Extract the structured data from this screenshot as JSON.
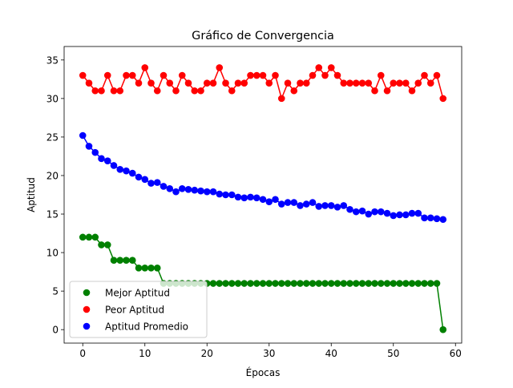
{
  "chart_data": {
    "type": "line",
    "title": "Gráfico de Convergencia",
    "xlabel": "Épocas",
    "ylabel": "Aptitud",
    "xlim": [
      -3,
      61
    ],
    "ylim": [
      -1.75,
      36.75
    ],
    "xticks": [
      "0",
      "10",
      "20",
      "30",
      "40",
      "50",
      "60"
    ],
    "yticks": [
      "0",
      "5",
      "10",
      "15",
      "20",
      "25",
      "30",
      "35"
    ],
    "grid": false,
    "legend_placement": "lower-left",
    "x": [
      0,
      1,
      2,
      3,
      4,
      5,
      6,
      7,
      8,
      9,
      10,
      11,
      12,
      13,
      14,
      15,
      16,
      17,
      18,
      19,
      20,
      21,
      22,
      23,
      24,
      25,
      26,
      27,
      28,
      29,
      30,
      31,
      32,
      33,
      34,
      35,
      36,
      37,
      38,
      39,
      40,
      41,
      42,
      43,
      44,
      45,
      46,
      47,
      48,
      49,
      50,
      51,
      52,
      53,
      54,
      55,
      56,
      57,
      58
    ],
    "series": [
      {
        "name": "Mejor Aptitud",
        "color": "#008000",
        "values": [
          12,
          12,
          12,
          11,
          11,
          9,
          9,
          9,
          9,
          8,
          8,
          8,
          8,
          6,
          6,
          6,
          6,
          6,
          6,
          6,
          6,
          6,
          6,
          6,
          6,
          6,
          6,
          6,
          6,
          6,
          6,
          6,
          6,
          6,
          6,
          6,
          6,
          6,
          6,
          6,
          6,
          6,
          6,
          6,
          6,
          6,
          6,
          6,
          6,
          6,
          6,
          6,
          6,
          6,
          6,
          6,
          6,
          6,
          0
        ]
      },
      {
        "name": "Peor Aptitud",
        "color": "#ff0000",
        "values": [
          33,
          32,
          31,
          31,
          33,
          31,
          31,
          33,
          33,
          32,
          34,
          32,
          31,
          33,
          32,
          31,
          33,
          32,
          31,
          31,
          32,
          32,
          34,
          32,
          31,
          32,
          32,
          33,
          33,
          33,
          32,
          33,
          30,
          32,
          31,
          32,
          32,
          33,
          34,
          33,
          34,
          33,
          32,
          32,
          32,
          32,
          32,
          31,
          33,
          31,
          32,
          32,
          32,
          31,
          32,
          33,
          32,
          33,
          30
        ]
      },
      {
        "name": "Aptitud Promedio",
        "color": "#0000ff",
        "values": [
          25.2,
          23.8,
          23.0,
          22.2,
          21.9,
          21.3,
          20.8,
          20.6,
          20.3,
          19.8,
          19.5,
          19.0,
          19.1,
          18.6,
          18.3,
          17.9,
          18.3,
          18.2,
          18.1,
          18.0,
          17.9,
          17.9,
          17.6,
          17.5,
          17.5,
          17.2,
          17.1,
          17.2,
          17.1,
          16.9,
          16.6,
          16.9,
          16.3,
          16.5,
          16.5,
          16.1,
          16.3,
          16.5,
          16.0,
          16.1,
          16.1,
          15.9,
          16.1,
          15.6,
          15.3,
          15.4,
          15.0,
          15.3,
          15.3,
          15.1,
          14.8,
          14.9,
          14.9,
          15.1,
          15.1,
          14.5,
          14.5,
          14.4,
          14.3
        ]
      }
    ]
  }
}
